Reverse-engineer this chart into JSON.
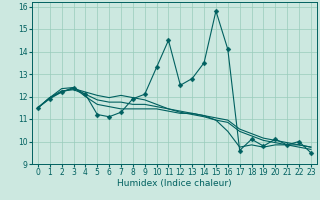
{
  "xlabel": "Humidex (Indice chaleur)",
  "bg_color": "#cce8e0",
  "line_color": "#006060",
  "grid_color": "#99ccbb",
  "xlim": [
    -0.5,
    23.5
  ],
  "ylim": [
    9,
    16.2
  ],
  "yticks": [
    9,
    10,
    11,
    12,
    13,
    14,
    15,
    16
  ],
  "xticks": [
    0,
    1,
    2,
    3,
    4,
    5,
    6,
    7,
    8,
    9,
    10,
    11,
    12,
    13,
    14,
    15,
    16,
    17,
    18,
    19,
    20,
    21,
    22,
    23
  ],
  "series": [
    [
      11.5,
      11.9,
      12.2,
      12.4,
      12.1,
      11.2,
      11.1,
      11.3,
      11.9,
      12.1,
      13.3,
      14.5,
      12.5,
      12.8,
      13.5,
      15.8,
      14.1,
      9.6,
      10.1,
      9.8,
      10.1,
      9.85,
      10.0,
      9.5
    ],
    [
      11.5,
      11.95,
      12.2,
      12.35,
      12.2,
      12.05,
      11.95,
      12.05,
      11.95,
      11.85,
      11.65,
      11.45,
      11.3,
      11.2,
      11.1,
      10.95,
      10.85,
      10.45,
      10.25,
      10.05,
      9.95,
      9.85,
      9.75,
      9.65
    ],
    [
      11.5,
      11.95,
      12.25,
      12.3,
      12.1,
      11.85,
      11.75,
      11.75,
      11.65,
      11.65,
      11.55,
      11.45,
      11.35,
      11.25,
      11.15,
      11.05,
      10.95,
      10.55,
      10.35,
      10.15,
      10.05,
      9.95,
      9.85,
      9.75
    ],
    [
      11.5,
      11.95,
      12.35,
      12.4,
      12.0,
      11.65,
      11.55,
      11.45,
      11.45,
      11.45,
      11.45,
      11.35,
      11.25,
      11.25,
      11.15,
      10.95,
      10.45,
      9.75,
      9.85,
      9.75,
      9.85,
      9.85,
      9.85,
      9.75
    ]
  ],
  "marker_size": 2.5,
  "xlabel_fontsize": 6.5,
  "tick_fontsize": 5.5,
  "linewidth": 0.8
}
